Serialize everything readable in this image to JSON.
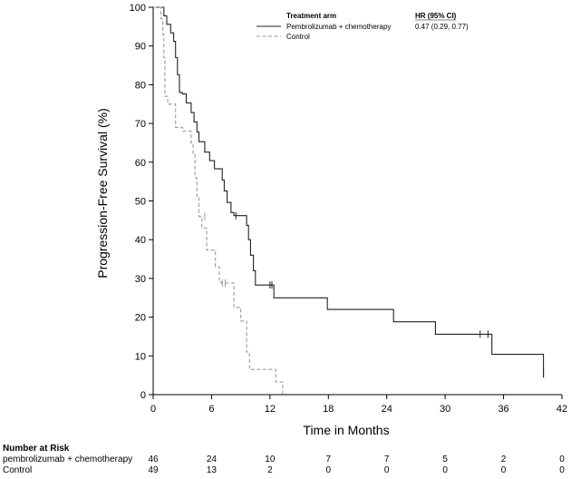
{
  "chart_data": {
    "type": "line",
    "title": "",
    "xlabel": "Time in Months",
    "ylabel": "Progression-Free Survival (%)",
    "xlim": [
      0,
      42
    ],
    "ylim": [
      0,
      100
    ],
    "xticks": [
      0,
      6,
      12,
      18,
      24,
      30,
      36,
      42
    ],
    "yticks": [
      0,
      10,
      20,
      30,
      40,
      50,
      60,
      70,
      80,
      90,
      100
    ],
    "legend": {
      "header_left": "Treatment arm",
      "header_right": "HR (95% CI)",
      "placement": "top-right",
      "hr_value": "0.47 (0.29, 0.77)"
    },
    "series": [
      {
        "name": "Pembrolizumab + chemotherapy",
        "style": "solid",
        "color": "#222222",
        "points": [
          [
            0,
            100
          ],
          [
            1.1,
            100
          ],
          [
            1.1,
            97.8
          ],
          [
            1.4,
            97.8
          ],
          [
            1.4,
            95.6
          ],
          [
            1.8,
            95.6
          ],
          [
            1.8,
            93.4
          ],
          [
            2.1,
            93.4
          ],
          [
            2.1,
            91.2
          ],
          [
            2.3,
            91.2
          ],
          [
            2.3,
            87
          ],
          [
            2.5,
            87
          ],
          [
            2.5,
            82.6
          ],
          [
            2.7,
            82.6
          ],
          [
            2.7,
            78
          ],
          [
            3.0,
            78
          ],
          [
            3.0,
            77.6
          ],
          [
            3.4,
            77.6
          ],
          [
            3.4,
            75.3
          ],
          [
            3.9,
            75.3
          ],
          [
            3.9,
            72.8
          ],
          [
            4.2,
            72.8
          ],
          [
            4.2,
            70.4
          ],
          [
            4.5,
            70.4
          ],
          [
            4.5,
            67.8
          ],
          [
            4.7,
            67.8
          ],
          [
            4.7,
            65.3
          ],
          [
            5.3,
            65.3
          ],
          [
            5.3,
            62.6
          ],
          [
            5.8,
            62.6
          ],
          [
            5.8,
            60.4
          ],
          [
            6.3,
            60.4
          ],
          [
            6.3,
            58.3
          ],
          [
            7.1,
            58.3
          ],
          [
            7.1,
            55.4
          ],
          [
            7.3,
            55.4
          ],
          [
            7.3,
            52.6
          ],
          [
            7.6,
            52.6
          ],
          [
            7.6,
            49.6
          ],
          [
            8.0,
            49.6
          ],
          [
            8.0,
            47.0
          ],
          [
            8.3,
            47.0
          ],
          [
            8.3,
            46.2
          ],
          [
            9.6,
            46.2
          ],
          [
            9.6,
            43.7
          ],
          [
            9.8,
            43.7
          ],
          [
            9.8,
            40.0
          ],
          [
            10.0,
            40.0
          ],
          [
            10.0,
            36.0
          ],
          [
            10.3,
            36.0
          ],
          [
            10.3,
            32.0
          ],
          [
            10.5,
            32.0
          ],
          [
            10.5,
            28.3
          ],
          [
            12.4,
            28.3
          ],
          [
            12.4,
            25.0
          ],
          [
            17.9,
            25.0
          ],
          [
            17.9,
            22.0
          ],
          [
            24.7,
            22.0
          ],
          [
            24.7,
            18.8
          ],
          [
            29.0,
            18.8
          ],
          [
            29.0,
            15.6
          ],
          [
            34.8,
            15.6
          ],
          [
            34.8,
            10.4
          ],
          [
            40.1,
            10.4
          ],
          [
            40.1,
            4.4
          ]
        ],
        "censors": [
          [
            8.5,
            46.2
          ],
          [
            12.0,
            28.3
          ],
          [
            12.2,
            28.3
          ],
          [
            33.6,
            15.6
          ],
          [
            34.4,
            15.6
          ],
          [
            40.1,
            5.5
          ]
        ]
      },
      {
        "name": "Control",
        "style": "dashed",
        "color": "#9a9a9a",
        "points": [
          [
            0,
            100
          ],
          [
            0.8,
            100
          ],
          [
            0.8,
            97
          ],
          [
            1.0,
            97
          ],
          [
            1.0,
            93
          ],
          [
            1.1,
            93
          ],
          [
            1.1,
            87
          ],
          [
            1.2,
            87
          ],
          [
            1.2,
            77
          ],
          [
            1.5,
            77
          ],
          [
            1.5,
            75
          ],
          [
            2.3,
            75
          ],
          [
            2.3,
            69
          ],
          [
            3.0,
            69
          ],
          [
            3.0,
            68
          ],
          [
            3.9,
            68
          ],
          [
            3.9,
            65
          ],
          [
            4.1,
            65
          ],
          [
            4.1,
            62
          ],
          [
            4.3,
            62
          ],
          [
            4.3,
            56
          ],
          [
            4.5,
            56
          ],
          [
            4.5,
            51
          ],
          [
            4.7,
            51
          ],
          [
            4.7,
            46
          ],
          [
            5.0,
            46
          ],
          [
            5.0,
            43
          ],
          [
            5.5,
            43
          ],
          [
            5.5,
            37.3
          ],
          [
            6.4,
            37.3
          ],
          [
            6.4,
            33
          ],
          [
            6.8,
            33
          ],
          [
            6.8,
            29
          ],
          [
            7.0,
            29
          ],
          [
            7.0,
            28.8
          ],
          [
            8.3,
            28.8
          ],
          [
            8.3,
            22.5
          ],
          [
            9.0,
            22.5
          ],
          [
            9.0,
            19
          ],
          [
            9.6,
            19
          ],
          [
            9.6,
            11
          ],
          [
            9.9,
            11
          ],
          [
            9.9,
            6.5
          ],
          [
            12.6,
            6.5
          ],
          [
            12.6,
            3.3
          ],
          [
            13.3,
            3.3
          ],
          [
            13.3,
            0
          ]
        ],
        "censors": [
          [
            5.3,
            46
          ],
          [
            7.1,
            28.8
          ],
          [
            7.4,
            28.8
          ]
        ]
      }
    ],
    "risk_table": {
      "title": "Number at Risk",
      "times": [
        0,
        6,
        12,
        18,
        24,
        30,
        36,
        42
      ],
      "rows": [
        {
          "label": "pembrolizumab + chemotherapy",
          "values": [
            46,
            24,
            10,
            7,
            7,
            5,
            2,
            0
          ]
        },
        {
          "label": "Control",
          "values": [
            49,
            13,
            2,
            0,
            0,
            0,
            0,
            0
          ]
        }
      ]
    }
  }
}
